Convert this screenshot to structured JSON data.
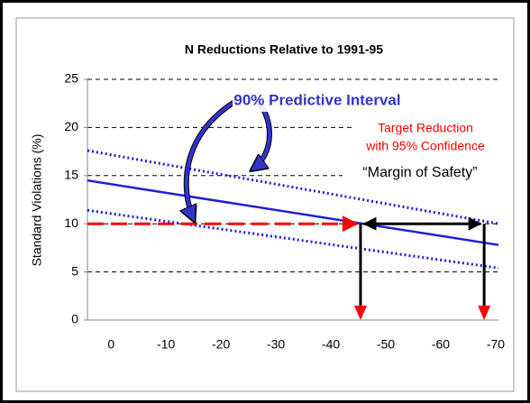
{
  "chart_data": {
    "type": "line",
    "title": "N Reductions Relative to 1991-95",
    "y_label": "Standard Violations (%)",
    "x": [
      4.3,
      -70.5
    ],
    "xlim": [
      4.3,
      -70.5
    ],
    "xticks": [
      0,
      -10,
      -20,
      -30,
      -40,
      -50,
      -60,
      -70
    ],
    "ylim": [
      0,
      25
    ],
    "yticks": [
      0,
      5,
      10,
      15,
      20,
      25
    ],
    "grid": true,
    "series": [
      {
        "color": "#1f1fd6",
        "style": "solid",
        "values": [
          14.5,
          7.8
        ]
      },
      {
        "color": "#1f1fd6",
        "style": "dotted",
        "values": [
          17.6,
          10.0
        ]
      },
      {
        "color": "#1f1fd6",
        "style": "dotted",
        "values": [
          11.4,
          5.4
        ]
      }
    ],
    "target": {
      "value": 10,
      "x": [
        4.3,
        -45.4
      ],
      "color": "#ff0000"
    },
    "drops": {
      "x": [
        -45.4,
        -67.9
      ],
      "color": "#000000",
      "head_color": "#ff0000"
    },
    "annotations": {
      "interval": "90% Predictive Interval",
      "target_line1": "Target Reduction",
      "target_line2": "with 95% Confidence",
      "margin": "“Margin of Safety”"
    }
  }
}
